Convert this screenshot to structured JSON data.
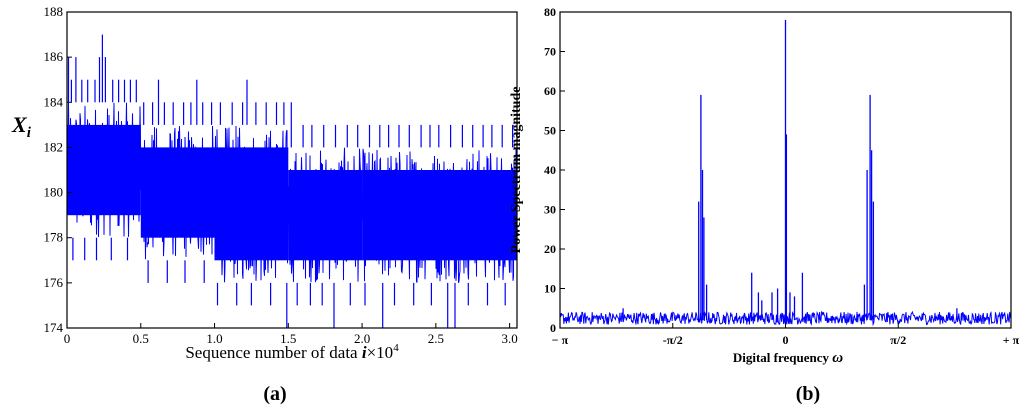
{
  "chart_data": [
    {
      "id": "a",
      "type": "line",
      "panel_label": "(a)",
      "ylabel": "X",
      "ylabel_sub": "i",
      "xlabel": "Sequence number of data ",
      "xlabel_var": "i",
      "xlabel_unit": "×10",
      "xlabel_exp": "4",
      "xlim": [
        0,
        3.05
      ],
      "ylim": [
        174,
        188
      ],
      "xticks": [
        0,
        0.5,
        1.0,
        1.5,
        2.0,
        2.5,
        3.0
      ],
      "xtick_labels": [
        "0",
        "0.5",
        "1.0",
        "1.5",
        "2.0",
        "2.5",
        "3.0"
      ],
      "yticks": [
        174,
        176,
        178,
        180,
        182,
        184,
        186,
        188
      ],
      "ytick_labels": [
        "174",
        "176",
        "178",
        "180",
        "182",
        "184",
        "186",
        "188"
      ],
      "band_segments": [
        {
          "x0": 0.0,
          "x1": 0.5,
          "low": 178,
          "high": 184
        },
        {
          "x0": 0.5,
          "x1": 1.0,
          "low": 177,
          "high": 183
        },
        {
          "x0": 1.0,
          "x1": 1.5,
          "low": 176,
          "high": 183
        },
        {
          "x0": 1.5,
          "x1": 2.0,
          "low": 176,
          "high": 182
        },
        {
          "x0": 2.0,
          "x1": 3.05,
          "low": 176,
          "high": 182
        }
      ],
      "spikes_up": [
        {
          "x": 0.01,
          "y": 186
        },
        {
          "x": 0.03,
          "y": 185
        },
        {
          "x": 0.06,
          "y": 186
        },
        {
          "x": 0.1,
          "y": 185
        },
        {
          "x": 0.14,
          "y": 185
        },
        {
          "x": 0.19,
          "y": 185
        },
        {
          "x": 0.22,
          "y": 186
        },
        {
          "x": 0.24,
          "y": 187
        },
        {
          "x": 0.26,
          "y": 186
        },
        {
          "x": 0.31,
          "y": 185
        },
        {
          "x": 0.35,
          "y": 185
        },
        {
          "x": 0.39,
          "y": 185
        },
        {
          "x": 0.43,
          "y": 185
        },
        {
          "x": 0.47,
          "y": 185
        },
        {
          "x": 0.52,
          "y": 184
        },
        {
          "x": 0.58,
          "y": 184
        },
        {
          "x": 0.62,
          "y": 185
        },
        {
          "x": 0.66,
          "y": 184
        },
        {
          "x": 0.72,
          "y": 184
        },
        {
          "x": 0.79,
          "y": 184
        },
        {
          "x": 0.84,
          "y": 184
        },
        {
          "x": 0.88,
          "y": 185
        },
        {
          "x": 0.92,
          "y": 184
        },
        {
          "x": 0.98,
          "y": 184
        },
        {
          "x": 1.04,
          "y": 184
        },
        {
          "x": 1.12,
          "y": 184
        },
        {
          "x": 1.19,
          "y": 184
        },
        {
          "x": 1.22,
          "y": 185
        },
        {
          "x": 1.28,
          "y": 184
        },
        {
          "x": 1.35,
          "y": 184
        },
        {
          "x": 1.42,
          "y": 184
        },
        {
          "x": 1.47,
          "y": 184
        },
        {
          "x": 1.52,
          "y": 184
        },
        {
          "x": 1.6,
          "y": 183
        },
        {
          "x": 1.66,
          "y": 183
        },
        {
          "x": 1.74,
          "y": 183
        },
        {
          "x": 1.82,
          "y": 183
        },
        {
          "x": 1.9,
          "y": 183
        },
        {
          "x": 1.97,
          "y": 183
        },
        {
          "x": 2.05,
          "y": 183
        },
        {
          "x": 2.12,
          "y": 183
        },
        {
          "x": 2.18,
          "y": 183
        },
        {
          "x": 2.25,
          "y": 183
        },
        {
          "x": 2.32,
          "y": 183
        },
        {
          "x": 2.4,
          "y": 183
        },
        {
          "x": 2.46,
          "y": 183
        },
        {
          "x": 2.52,
          "y": 183
        },
        {
          "x": 2.6,
          "y": 183
        },
        {
          "x": 2.68,
          "y": 183
        },
        {
          "x": 2.75,
          "y": 183
        },
        {
          "x": 2.82,
          "y": 183
        },
        {
          "x": 2.88,
          "y": 183
        },
        {
          "x": 2.95,
          "y": 183
        },
        {
          "x": 3.02,
          "y": 183
        }
      ],
      "spikes_down": [
        {
          "x": 0.04,
          "y": 177
        },
        {
          "x": 0.12,
          "y": 177
        },
        {
          "x": 0.2,
          "y": 177
        },
        {
          "x": 0.3,
          "y": 177
        },
        {
          "x": 0.41,
          "y": 177
        },
        {
          "x": 0.55,
          "y": 176
        },
        {
          "x": 0.68,
          "y": 176
        },
        {
          "x": 0.8,
          "y": 176
        },
        {
          "x": 0.93,
          "y": 176
        },
        {
          "x": 1.02,
          "y": 175
        },
        {
          "x": 1.15,
          "y": 175
        },
        {
          "x": 1.25,
          "y": 175
        },
        {
          "x": 1.38,
          "y": 175
        },
        {
          "x": 1.49,
          "y": 174
        },
        {
          "x": 1.56,
          "y": 175
        },
        {
          "x": 1.65,
          "y": 175
        },
        {
          "x": 1.73,
          "y": 175
        },
        {
          "x": 1.81,
          "y": 174
        },
        {
          "x": 1.92,
          "y": 175
        },
        {
          "x": 2.02,
          "y": 175
        },
        {
          "x": 2.14,
          "y": 174
        },
        {
          "x": 2.22,
          "y": 175
        },
        {
          "x": 2.35,
          "y": 175
        },
        {
          "x": 2.47,
          "y": 175
        },
        {
          "x": 2.58,
          "y": 174
        },
        {
          "x": 2.63,
          "y": 174
        },
        {
          "x": 2.72,
          "y": 175
        },
        {
          "x": 2.85,
          "y": 175
        },
        {
          "x": 2.97,
          "y": 175
        }
      ],
      "color": "#0000ff",
      "grid": false
    },
    {
      "id": "b",
      "type": "line",
      "panel_label": "(b)",
      "ylabel": "Power Spectrum magnitude",
      "xlabel": "Digital frequency ",
      "xlabel_var": "ω",
      "xlim": [
        -1,
        1
      ],
      "ylim": [
        0,
        80
      ],
      "xticks": [
        -1,
        -0.5,
        0,
        0.5,
        1
      ],
      "xtick_labels": [
        "− π",
        "-π/2",
        "0",
        "π/2",
        "+ π"
      ],
      "yticks": [
        0,
        10,
        20,
        30,
        40,
        50,
        60,
        70,
        80
      ],
      "ytick_labels": [
        "0",
        "10",
        "20",
        "30",
        "40",
        "50",
        "60",
        "70",
        "80"
      ],
      "baseline": 2,
      "peaks": [
        {
          "x": -0.385,
          "y": 32
        },
        {
          "x": -0.375,
          "y": 59
        },
        {
          "x": -0.368,
          "y": 40
        },
        {
          "x": -0.362,
          "y": 28
        },
        {
          "x": -0.35,
          "y": 11
        },
        {
          "x": -0.15,
          "y": 14
        },
        {
          "x": -0.12,
          "y": 9
        },
        {
          "x": -0.105,
          "y": 7
        },
        {
          "x": -0.06,
          "y": 9
        },
        {
          "x": -0.035,
          "y": 10
        },
        {
          "x": 0.0,
          "y": 78
        },
        {
          "x": 0.004,
          "y": 49
        },
        {
          "x": 0.02,
          "y": 9
        },
        {
          "x": 0.04,
          "y": 8
        },
        {
          "x": 0.075,
          "y": 14
        },
        {
          "x": 0.35,
          "y": 11
        },
        {
          "x": 0.362,
          "y": 40
        },
        {
          "x": 0.375,
          "y": 59
        },
        {
          "x": 0.382,
          "y": 45
        },
        {
          "x": 0.39,
          "y": 32
        },
        {
          "x": -0.72,
          "y": 5
        },
        {
          "x": 0.76,
          "y": 5
        }
      ],
      "color": "#0000ff",
      "grid": false
    }
  ]
}
